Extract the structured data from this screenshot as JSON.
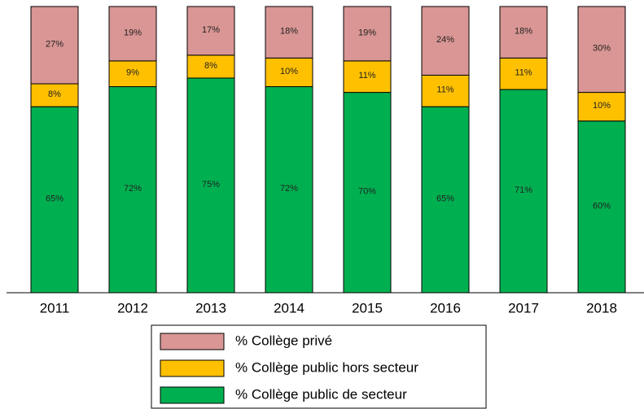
{
  "chart_data": {
    "type": "stacked_bar",
    "categories": [
      "2011",
      "2012",
      "2013",
      "2014",
      "2015",
      "2016",
      "2017",
      "2018"
    ],
    "series": [
      {
        "name": "% Collège public de secteur",
        "color": "#00b050",
        "values": [
          65,
          72,
          75,
          72,
          70,
          65,
          71,
          60
        ],
        "value_labels": [
          "65%",
          "72%",
          "75%",
          "72%",
          "70%",
          "65%",
          "71%",
          "60%"
        ]
      },
      {
        "name": "% Collège public hors secteur",
        "color": "#ffc000",
        "values": [
          8,
          9,
          8,
          10,
          11,
          11,
          11,
          10
        ],
        "value_labels": [
          "8%",
          "9%",
          "8%",
          "10%",
          "11%",
          "11%",
          "11%",
          "10%"
        ]
      },
      {
        "name": "% Collège privé",
        "color": "#d99694",
        "values": [
          27,
          19,
          17,
          18,
          19,
          24,
          18,
          30
        ],
        "value_labels": [
          "27%",
          "19%",
          "17%",
          "18%",
          "19%",
          "24%",
          "18%",
          "30%"
        ]
      }
    ],
    "ylim": [
      0,
      100
    ],
    "legend": "bottom"
  }
}
